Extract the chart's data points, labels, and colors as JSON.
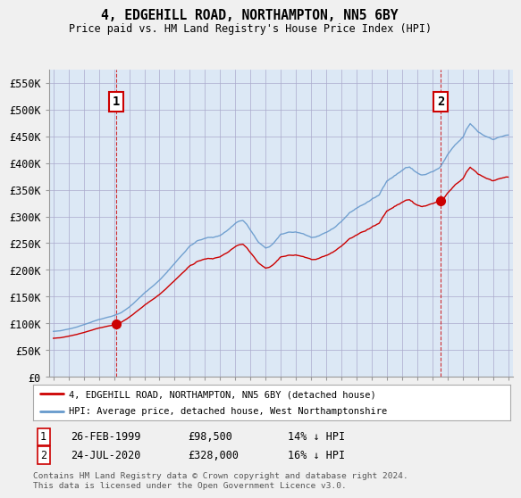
{
  "title": "4, EDGEHILL ROAD, NORTHAMPTON, NN5 6BY",
  "subtitle": "Price paid vs. HM Land Registry's House Price Index (HPI)",
  "red_label": "4, EDGEHILL ROAD, NORTHAMPTON, NN5 6BY (detached house)",
  "blue_label": "HPI: Average price, detached house, West Northamptonshire",
  "transaction1_date": "26-FEB-1999",
  "transaction1_price": "£98,500",
  "transaction1_hpi": "14% ↓ HPI",
  "transaction2_date": "24-JUL-2020",
  "transaction2_price": "£328,000",
  "transaction2_hpi": "16% ↓ HPI",
  "footer": "Contains HM Land Registry data © Crown copyright and database right 2024.\nThis data is licensed under the Open Government Licence v3.0.",
  "ylim": [
    0,
    575000
  ],
  "yticks": [
    0,
    50000,
    100000,
    150000,
    200000,
    250000,
    300000,
    350000,
    400000,
    450000,
    500000,
    550000
  ],
  "ytick_labels": [
    "£0",
    "£50K",
    "£100K",
    "£150K",
    "£200K",
    "£250K",
    "£300K",
    "£350K",
    "£400K",
    "£450K",
    "£500K",
    "£550K"
  ],
  "bg_color": "#f0f0f0",
  "plot_bg_color": "#dce8f5",
  "red_color": "#cc0000",
  "blue_color": "#6699cc",
  "vline_color": "#cc0000",
  "grid_color": "#aaaacc",
  "transaction1_x": 1999.15,
  "transaction2_x": 2020.55
}
